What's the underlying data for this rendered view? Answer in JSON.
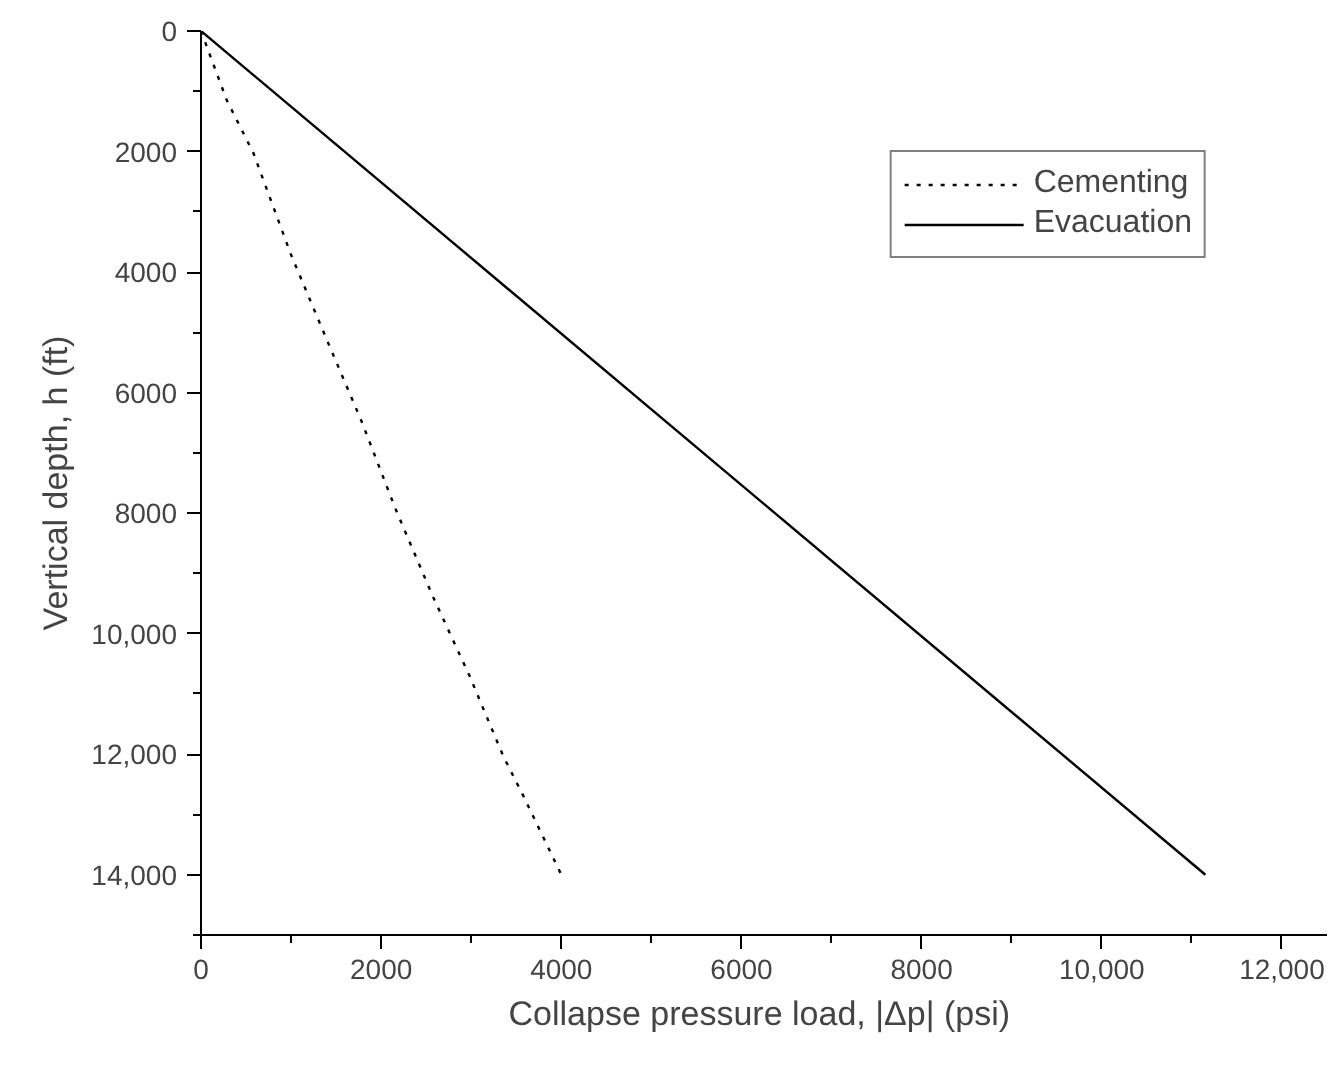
{
  "chart_data": {
    "type": "line",
    "xlabel": "Collapse pressure load, |Δp|  (psi)",
    "ylabel": "Vertical depth, h (ft)",
    "xlim": [
      0,
      12500
    ],
    "ylim": [
      15000,
      0
    ],
    "xticks": [
      0,
      2000,
      4000,
      6000,
      8000,
      {
        "value": 10000,
        "label": "10,000"
      },
      {
        "value": 12000,
        "label": "12,000"
      }
    ],
    "yticks": [
      0,
      2000,
      4000,
      6000,
      8000,
      {
        "value": 10000,
        "label": "10,000"
      },
      {
        "value": 12000,
        "label": "12,000"
      },
      {
        "value": 14000,
        "label": "14,000"
      }
    ],
    "grid": false,
    "legend": "top right",
    "series": [
      {
        "name": "Cementing",
        "color": "#000000",
        "line_style": "dotted",
        "x": [
          0,
          285,
          584,
          996,
          1371,
          1783,
          2157,
          2569,
          2981,
          3356,
          3581,
          4000
        ],
        "values": [
          0,
          1144,
          2033,
          3700,
          5033,
          6478,
          7922,
          9367,
          10700,
          12033,
          12700,
          14000
        ]
      },
      {
        "name": "Evacuation",
        "color": "#000000",
        "line_style": "solid",
        "x": [
          0,
          11150
        ],
        "values": [
          0,
          14000
        ]
      }
    ]
  }
}
